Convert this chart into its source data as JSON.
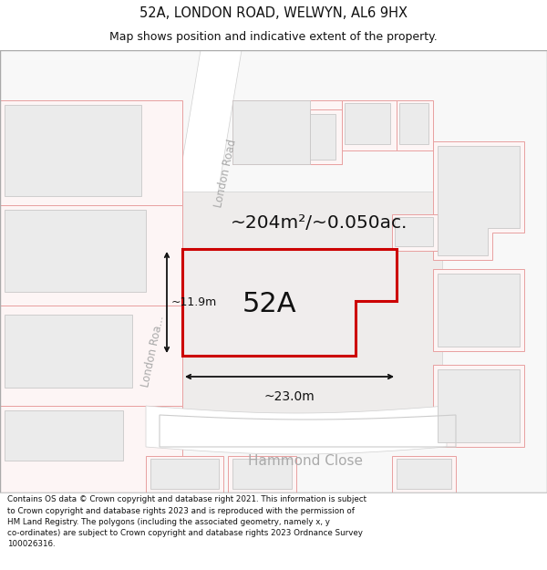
{
  "title_line1": "52A, LONDON ROAD, WELWYN, AL6 9HX",
  "title_line2": "Map shows position and indicative extent of the property.",
  "area_text": "~204m²/~0.050ac.",
  "label_52A": "52A",
  "dim_width": "~23.0m",
  "dim_height": "~11.9m",
  "street_london_road_upper": "London Road",
  "street_london_road_lower": "London Roa...",
  "street_hammond": "Hammond Close",
  "footer_text": "Contains OS data © Crown copyright and database right 2021. This information is subject to Crown copyright and database rights 2023 and is reproduced with the permission of HM Land Registry. The polygons (including the associated geometry, namely x, y co-ordinates) are subject to Crown copyright and database rights 2023 Ordnance Survey 100026316.",
  "bg_color": "#ffffff",
  "map_bg": "#f8f8f8",
  "building_fill": "#ebebeb",
  "building_edge": "#c8c8c8",
  "pink_edge": "#e8a0a0",
  "pink_fill": "#fdf5f5",
  "red_outline": "#cc0000",
  "title_bg": "#ffffff",
  "footer_bg": "#ffffff",
  "road_fill": "#ffffff",
  "separator_color": "#cccccc"
}
